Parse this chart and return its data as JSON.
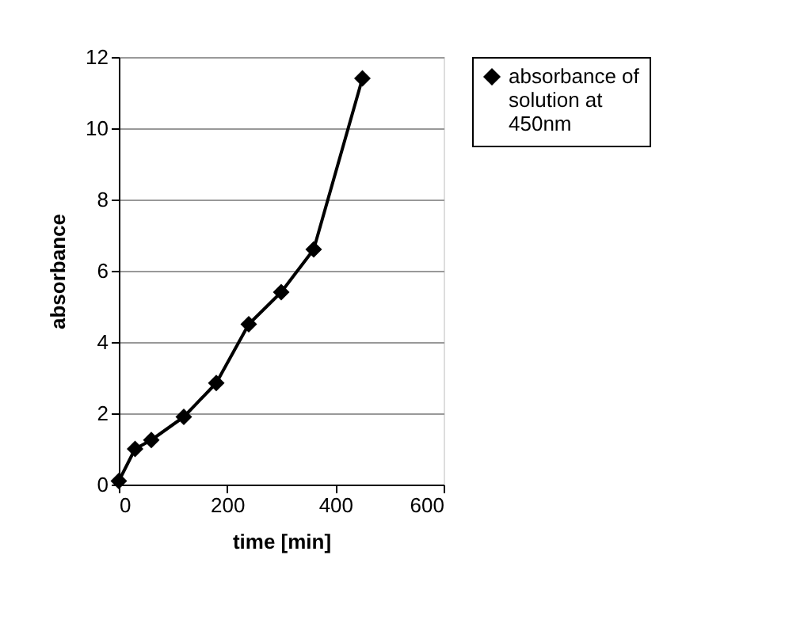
{
  "chart_data": {
    "type": "line",
    "xlabel": "time [min]",
    "ylabel": "absorbance",
    "series": [
      {
        "name": "absorbance of solution at 450nm",
        "color": "#000000",
        "x": [
          0,
          30,
          60,
          120,
          180,
          240,
          300,
          360,
          450
        ],
        "values": [
          0.1,
          1.0,
          1.25,
          1.9,
          2.85,
          4.5,
          5.4,
          6.6,
          11.4
        ]
      }
    ],
    "xlim": [
      0,
      600
    ],
    "xticks": [
      0,
      200,
      400,
      600
    ],
    "ylim": [
      0,
      12
    ],
    "yticks": [
      0,
      2,
      4,
      6,
      8,
      10,
      12
    ],
    "grid": "y",
    "legend": "right",
    "marker": "diamond",
    "line_style": "solid"
  }
}
